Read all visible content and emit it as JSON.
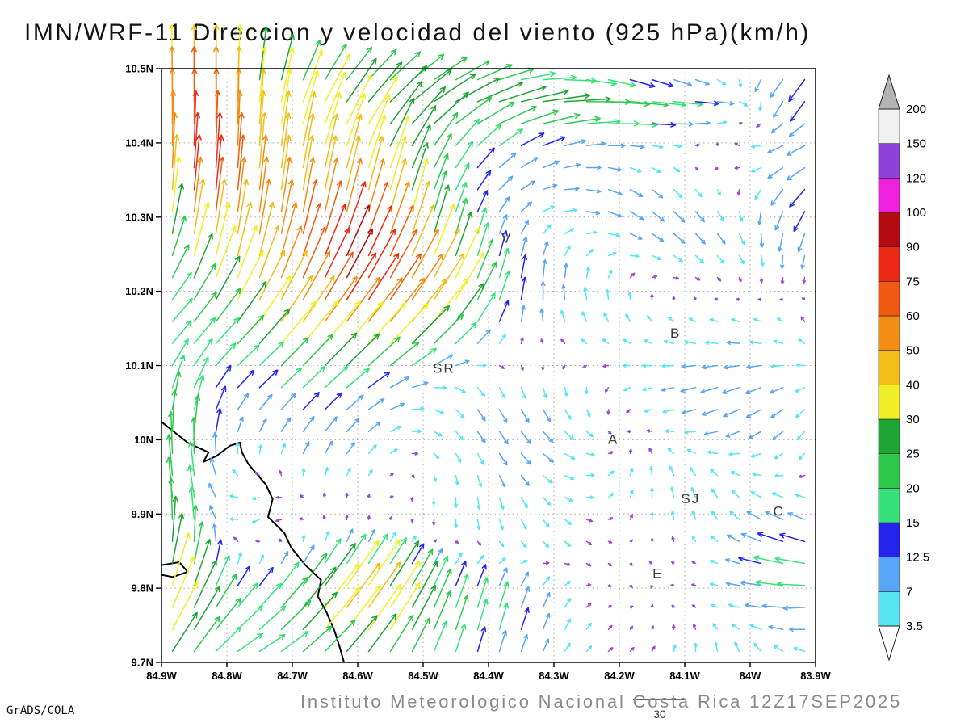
{
  "title": "IMN/WRF-11 Direccion y velocidad del viento (925 hPa)(km/h)",
  "footer": {
    "credit": "GrADS/COLA",
    "institute": "Instituto Meteorologico Nacional Costa Rica 12Z17SEP2025"
  },
  "chart_data": {
    "type": "vector_field",
    "model": "IMN/WRF-11",
    "variable": "Direccion y velocidad del viento",
    "level": "925 hPa",
    "units": "km/h",
    "valid_time": "12Z17SEP2025",
    "lon_range": [
      -84.9,
      -83.9
    ],
    "lat_range": [
      9.7,
      10.5
    ],
    "x_ticks": [
      "84.9W",
      "84.8W",
      "84.7W",
      "84.6W",
      "84.5W",
      "84.4W",
      "84.3W",
      "84.2W",
      "84.1W",
      "84W",
      "83.9W"
    ],
    "y_ticks": [
      "10.5N",
      "10.4N",
      "10.3N",
      "10.2N",
      "10.1N",
      "10N",
      "9.9N",
      "9.8N",
      "9.7N"
    ],
    "grid": true,
    "reference_vector": {
      "value": 30,
      "label": "30"
    },
    "colorbar": {
      "levels": [
        3.5,
        7,
        12.5,
        15,
        20,
        25,
        30,
        40,
        50,
        60,
        75,
        90,
        100,
        120,
        150,
        200
      ],
      "segment_colors": [
        "#55e6f2",
        "#58a6f5",
        "#2424ee",
        "#35e27a",
        "#2cc94b",
        "#1da534",
        "#efef26",
        "#f2bd18",
        "#f28c12",
        "#f05a10",
        "#ef2815",
        "#b40a12",
        "#ee1fdf",
        "#8d41d8",
        "#f0f0f0"
      ],
      "below_color": "#ffffff",
      "above_color": "#b3b3b3",
      "calm_arrow_color": "#9b49d6"
    },
    "stations": [
      {
        "label": "V",
        "lon": -84.372,
        "lat": 10.272
      },
      {
        "label": "B",
        "lon": -84.114,
        "lat": 10.144
      },
      {
        "label": "SR",
        "lon": -84.468,
        "lat": 10.097
      },
      {
        "label": "A",
        "lon": -84.209,
        "lat": 10.001
      },
      {
        "label": "SJ",
        "lon": -84.091,
        "lat": 9.921
      },
      {
        "label": "C",
        "lon": -83.956,
        "lat": 9.904
      },
      {
        "label": "E",
        "lon": -84.141,
        "lat": 9.82
      }
    ],
    "coastlines": [
      [
        [
          -84.9,
          10.024
        ],
        [
          -84.86,
          9.996
        ],
        [
          -84.828,
          9.983
        ],
        [
          -84.836,
          9.97
        ],
        [
          -84.816,
          9.978
        ],
        [
          -84.795,
          9.992
        ],
        [
          -84.78,
          9.996
        ],
        [
          -84.777,
          9.983
        ],
        [
          -84.767,
          9.967
        ],
        [
          -84.74,
          9.939
        ],
        [
          -84.73,
          9.92
        ],
        [
          -84.737,
          9.896
        ],
        [
          -84.712,
          9.874
        ],
        [
          -84.702,
          9.855
        ],
        [
          -84.68,
          9.831
        ],
        [
          -84.656,
          9.811
        ],
        [
          -84.661,
          9.789
        ],
        [
          -84.648,
          9.768
        ],
        [
          -84.636,
          9.744
        ],
        [
          -84.628,
          9.722
        ],
        [
          -84.621,
          9.7
        ]
      ],
      [
        [
          -84.9,
          9.831
        ],
        [
          -84.873,
          9.835
        ],
        [
          -84.86,
          9.822
        ],
        [
          -84.883,
          9.815
        ],
        [
          -84.9,
          9.818
        ]
      ]
    ],
    "wind_field_model": {
      "grid": {
        "nx": 30,
        "ny": 27
      },
      "components": [
        {
          "name": "nw-orographic-jet",
          "cx": 0.24,
          "cy": 0.76,
          "sx": 0.14,
          "sy": 0.15,
          "u": 14,
          "v": 52
        },
        {
          "name": "nw-jet-core",
          "cx": 0.3,
          "cy": 0.68,
          "sx": 0.05,
          "sy": 0.05,
          "u": 20,
          "v": 30
        },
        {
          "name": "diagonal-gust-band",
          "cx": 0.34,
          "cy": 0.6,
          "sx": 0.12,
          "sy": 0.07,
          "u": 32,
          "v": 26
        },
        {
          "name": "topleft-updraft",
          "cx": 0.1,
          "cy": 0.93,
          "sx": 0.08,
          "sy": 0.07,
          "u": -5,
          "v": 20
        },
        {
          "name": "topleft-corner-strong",
          "cx": 0.04,
          "cy": 0.9,
          "sx": 0.05,
          "sy": 0.07,
          "u": 3,
          "v": 38
        },
        {
          "name": "west-ridge-strong",
          "cx": 0.07,
          "cy": 0.8,
          "sx": 0.04,
          "sy": 0.05,
          "u": 6,
          "v": 42
        },
        {
          "name": "top-easterly-jet",
          "cx": 0.67,
          "cy": 0.95,
          "sx": 0.24,
          "sy": 0.045,
          "u": 25,
          "v": -1
        },
        {
          "name": "left-edge-northerly",
          "cx": 0.02,
          "cy": 0.25,
          "sx": 0.05,
          "sy": 0.22,
          "u": 5,
          "v": 28
        },
        {
          "name": "coastal-ne-flow",
          "cx": 0.22,
          "cy": 0.06,
          "sx": 0.16,
          "sy": 0.09,
          "u": 15,
          "v": 13
        },
        {
          "name": "coastal-ne-core",
          "cx": 0.3,
          "cy": 0.1,
          "sx": 0.07,
          "sy": 0.06,
          "u": 16,
          "v": 18
        },
        {
          "name": "bottom-center-upflow",
          "cx": 0.52,
          "cy": 0.1,
          "sx": 0.1,
          "sy": 0.07,
          "u": 2,
          "v": 13
        },
        {
          "name": "topright-sw-drift",
          "cx": 0.99,
          "cy": 0.97,
          "sx": 0.08,
          "sy": 0.05,
          "u": -12,
          "v": -10
        },
        {
          "name": "right-edge-southerly",
          "cx": 0.98,
          "cy": 0.8,
          "sx": 0.05,
          "sy": 0.1,
          "u": -5,
          "v": -13
        },
        {
          "name": "right-mid-westerly",
          "cx": 0.9,
          "cy": 0.5,
          "sx": 0.1,
          "sy": 0.12,
          "u": -9,
          "v": 2
        },
        {
          "name": "bottomright-westerly",
          "cx": 0.97,
          "cy": 0.17,
          "sx": 0.06,
          "sy": 0.07,
          "u": -15,
          "v": 6
        },
        {
          "name": "center-eddy-east",
          "cx": 0.6,
          "cy": 0.4,
          "sx": 0.1,
          "sy": 0.1,
          "u": 7,
          "v": -5
        },
        {
          "name": "center-calm-drift",
          "cx": 0.45,
          "cy": 0.3,
          "sx": 0.1,
          "sy": 0.08,
          "u": -6,
          "v": -5
        }
      ],
      "noise": {
        "a1": 3.2,
        "f1": 2.1,
        "p1": 0.7,
        "a2": 4.4,
        "f2": 1.2,
        "p2": 2.3,
        "a3": 3.0,
        "f3": 3.3,
        "p3": 4.1
      }
    }
  }
}
